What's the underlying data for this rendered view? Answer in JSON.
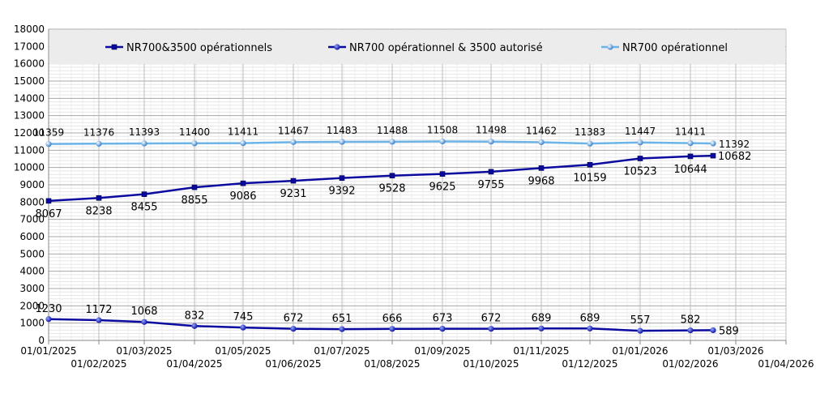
{
  "chart_data": {
    "type": "line",
    "grid": true,
    "legend_position": "top",
    "ylim": [
      0,
      18000
    ],
    "y_ticks": [
      "0",
      "1000",
      "2000",
      "3000",
      "4000",
      "5000",
      "6000",
      "7000",
      "8000",
      "9000",
      "10000",
      "11000",
      "12000",
      "13000",
      "14000",
      "15000",
      "16000",
      "17000",
      "18000"
    ],
    "x_tick_labels": [
      "01/01/2025",
      "01/02/2025",
      "01/03/2025",
      "01/04/2025",
      "01/05/2025",
      "01/06/2025",
      "01/07/2025",
      "01/08/2025",
      "01/09/2025",
      "01/10/2025",
      "01/11/2025",
      "01/12/2025",
      "01/01/2026",
      "01/02/2026",
      "01/03/2026",
      "01/04/2026"
    ],
    "x": [
      "01/01/2025",
      "01/02/2025",
      "01/03/2025",
      "01/04/2025",
      "01/05/2025",
      "01/06/2025",
      "01/07/2025",
      "01/08/2025",
      "01/09/2025",
      "01/10/2025",
      "01/11/2025",
      "01/12/2025",
      "01/01/2026",
      "01/02/2026",
      "15/02/2026"
    ],
    "series": [
      {
        "name": "NR700&3500 opérationnels",
        "color": "#0a0a9e",
        "values": [
          8067,
          8238,
          8455,
          8855,
          9086,
          9231,
          9392,
          9528,
          9625,
          9755,
          9968,
          10159,
          10523,
          10644,
          10682
        ],
        "labels": [
          "8067",
          "8238",
          "8455",
          "8855",
          "9086",
          "9231",
          "9392",
          "9528",
          "9625",
          "9755",
          "9968",
          "10159",
          "10523",
          "10644",
          "10682"
        ]
      },
      {
        "name": "NR700 opérationnel & 3500 autorisé",
        "color": "#0a0a9e",
        "values": [
          1230,
          1172,
          1068,
          832,
          745,
          672,
          651,
          666,
          673,
          672,
          689,
          689,
          557,
          582,
          589
        ],
        "labels": [
          "1230",
          "1172",
          "1068",
          "832",
          "745",
          "672",
          "651",
          "666",
          "673",
          "672",
          "689",
          "689",
          "557",
          "582",
          "589"
        ]
      },
      {
        "name": "NR700 opérationnel",
        "color": "#6cb4e8",
        "values": [
          11359,
          11376,
          11393,
          11400,
          11411,
          11467,
          11483,
          11488,
          11508,
          11498,
          11462,
          11383,
          11447,
          11411,
          11392
        ],
        "labels": [
          "11359",
          "11376",
          "11393",
          "11400",
          "11411",
          "11467",
          "11483",
          "11488",
          "11508",
          "11498",
          "11462",
          "11383",
          "11447",
          "11411",
          "11392"
        ]
      }
    ]
  }
}
